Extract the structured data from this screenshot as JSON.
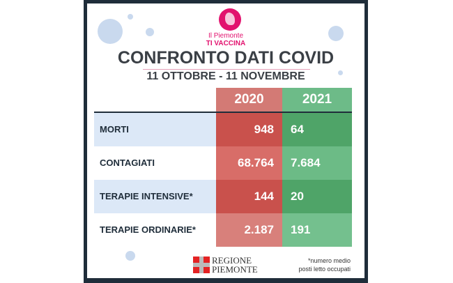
{
  "header": {
    "brand_line1": "Il Piemonte",
    "brand_line2": "TI VACCINA",
    "title": "CONFRONTO DATI COVID",
    "subtitle": "11 OTTOBRE - 11 NOVEMBRE"
  },
  "colors": {
    "col_2020": "#cf6b66",
    "col_2021": "#63b57f",
    "row_shade": "#dce8f7",
    "frame": "#1f2d3a",
    "brand": "#e2126e"
  },
  "chart_data": {
    "type": "table",
    "columns": [
      "2020",
      "2021"
    ],
    "rows": [
      {
        "label": "MORTI",
        "values": [
          "948",
          "64"
        ]
      },
      {
        "label": "CONTAGIATI",
        "values": [
          "68.764",
          "7.684"
        ]
      },
      {
        "label": "TERAPIE INTENSIVE*",
        "values": [
          "144",
          "20"
        ]
      },
      {
        "label": "TERAPIE ORDINARIE*",
        "values": [
          "2.187",
          "191"
        ]
      }
    ]
  },
  "footer": {
    "logo_line1": "REGIONE",
    "logo_line2": "PIEMONTE",
    "note_line1": "*numero medio",
    "note_line2": "posti letto occupati"
  }
}
